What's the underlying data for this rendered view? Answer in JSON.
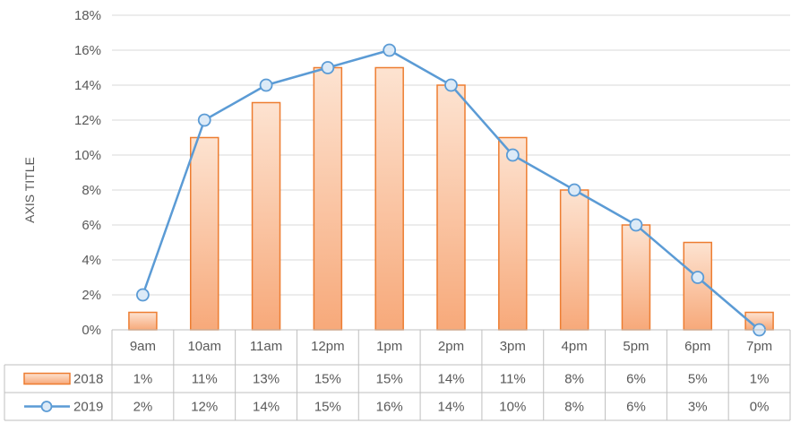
{
  "chart_data": {
    "type": "bar",
    "title": "",
    "xlabel": "",
    "ylabel": "AXIS TITLE",
    "ylim": [
      0,
      18
    ],
    "y_ticks": [
      "0%",
      "2%",
      "4%",
      "6%",
      "8%",
      "10%",
      "12%",
      "14%",
      "16%",
      "18%"
    ],
    "grid": true,
    "categories": [
      "9am",
      "10am",
      "11am",
      "12pm",
      "1pm",
      "2pm",
      "3pm",
      "4pm",
      "5pm",
      "6pm",
      "7pm"
    ],
    "series": [
      {
        "name": "2018",
        "kind": "bar",
        "values": [
          1,
          11,
          13,
          15,
          15,
          14,
          11,
          8,
          6,
          5,
          1
        ],
        "labels": [
          "1%",
          "11%",
          "13%",
          "15%",
          "15%",
          "14%",
          "11%",
          "8%",
          "6%",
          "5%",
          "1%"
        ],
        "color": "#ED7D31",
        "fill_top": "#FDE3D1",
        "fill_bottom": "#F7A97A"
      },
      {
        "name": "2019",
        "kind": "line",
        "values": [
          2,
          12,
          14,
          15,
          16,
          14,
          10,
          8,
          6,
          3,
          0
        ],
        "labels": [
          "2%",
          "12%",
          "14%",
          "15%",
          "16%",
          "14%",
          "10%",
          "8%",
          "6%",
          "3%",
          "0%"
        ],
        "color": "#5B9BD5",
        "marker_fill": "#DCEAF7"
      }
    ],
    "data_table": true,
    "legend_placement": "data-table"
  }
}
